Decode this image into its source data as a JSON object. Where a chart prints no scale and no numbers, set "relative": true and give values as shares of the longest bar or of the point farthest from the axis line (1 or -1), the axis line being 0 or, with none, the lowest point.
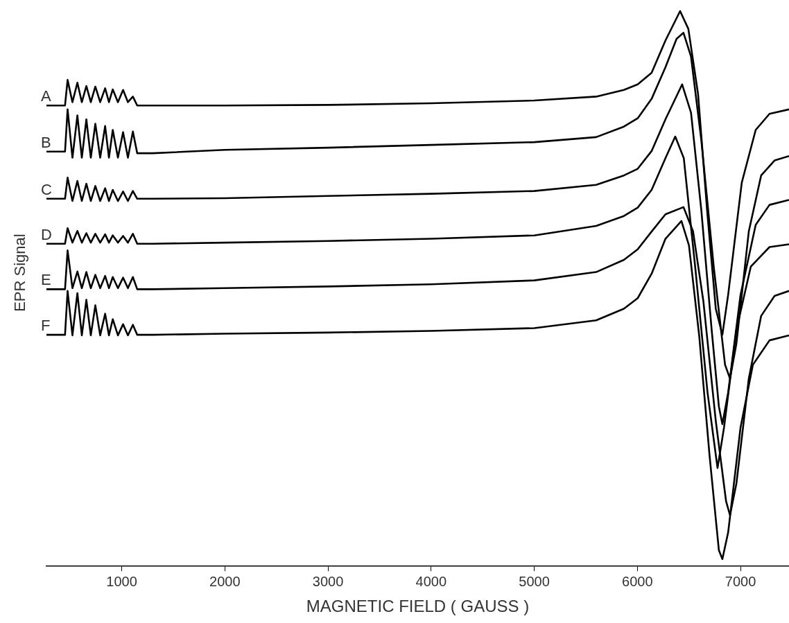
{
  "chart_data": {
    "type": "line",
    "xlabel": "MAGNETIC FIELD ( GAUSS )",
    "ylabel": "EPR Signal",
    "relative": true,
    "legend": false,
    "xlim": [
      270,
      7470
    ],
    "xticks": [
      1000,
      2000,
      3000,
      4000,
      5000,
      6000,
      7000
    ],
    "series": [
      {
        "name": "A",
        "color": "#000000",
        "x": [
          270,
          450,
          475,
          522,
          570,
          613,
          657,
          700,
          744,
          791,
          839,
          876,
          913,
          963,
          1013,
          1060,
          1108,
          1150,
          1300,
          2000,
          3000,
          4000,
          5000,
          5600,
          5869,
          6003,
          6138,
          6272,
          6414,
          6494,
          6588,
          6676,
          6760,
          6824,
          6880,
          7012,
          7147,
          7281,
          7470
        ],
        "values": [
          0.83,
          0.83,
          0.876,
          0.836,
          0.871,
          0.836,
          0.865,
          0.836,
          0.864,
          0.836,
          0.861,
          0.836,
          0.859,
          0.836,
          0.858,
          0.836,
          0.846,
          0.83,
          0.83,
          0.83,
          0.831,
          0.834,
          0.839,
          0.846,
          0.858,
          0.868,
          0.889,
          0.947,
          1.0,
          0.968,
          0.851,
          0.641,
          0.464,
          0.417,
          0.489,
          0.691,
          0.786,
          0.815,
          0.823
        ]
      },
      {
        "name": "B",
        "color": "#000000",
        "x": [
          270,
          450,
          475,
          522,
          570,
          613,
          657,
          700,
          744,
          791,
          839,
          876,
          913,
          963,
          1013,
          1060,
          1108,
          1150,
          1300,
          2000,
          3000,
          4000,
          5000,
          5600,
          5869,
          6003,
          6138,
          6272,
          6380,
          6447,
          6520,
          6620,
          6740,
          6850,
          6898,
          6960,
          7080,
          7200,
          7330,
          7470
        ],
        "values": [
          0.747,
          0.747,
          0.823,
          0.736,
          0.812,
          0.736,
          0.805,
          0.736,
          0.797,
          0.736,
          0.793,
          0.736,
          0.786,
          0.736,
          0.782,
          0.736,
          0.783,
          0.744,
          0.744,
          0.75,
          0.754,
          0.759,
          0.764,
          0.773,
          0.792,
          0.807,
          0.842,
          0.899,
          0.95,
          0.961,
          0.918,
          0.767,
          0.54,
          0.363,
          0.338,
          0.401,
          0.603,
          0.704,
          0.731,
          0.739
        ]
      },
      {
        "name": "C",
        "color": "#000000",
        "x": [
          270,
          450,
          475,
          522,
          570,
          613,
          657,
          700,
          744,
          791,
          839,
          876,
          913,
          963,
          1013,
          1060,
          1108,
          1150,
          1300,
          2000,
          3000,
          4000,
          5000,
          5600,
          5869,
          6003,
          6138,
          6272,
          6434,
          6520,
          6620,
          6720,
          6790,
          6824,
          6880,
          7000,
          7147,
          7281,
          7470
        ],
        "values": [
          0.662,
          0.662,
          0.7,
          0.658,
          0.694,
          0.658,
          0.689,
          0.658,
          0.685,
          0.658,
          0.681,
          0.658,
          0.678,
          0.658,
          0.675,
          0.658,
          0.676,
          0.662,
          0.662,
          0.663,
          0.667,
          0.671,
          0.676,
          0.687,
          0.704,
          0.716,
          0.748,
          0.805,
          0.868,
          0.817,
          0.641,
          0.426,
          0.288,
          0.256,
          0.313,
          0.489,
          0.615,
          0.651,
          0.66
        ]
      },
      {
        "name": "D",
        "color": "#000000",
        "x": [
          270,
          450,
          475,
          522,
          570,
          613,
          657,
          700,
          744,
          791,
          839,
          876,
          913,
          963,
          1013,
          1060,
          1108,
          1150,
          1300,
          2000,
          3000,
          4000,
          5000,
          5600,
          5869,
          6003,
          6138,
          6272,
          6367,
          6450,
          6560,
          6680,
          6777,
          6840,
          6960,
          7100,
          7281,
          7470
        ],
        "values": [
          0.581,
          0.581,
          0.609,
          0.583,
          0.604,
          0.583,
          0.6,
          0.583,
          0.599,
          0.583,
          0.598,
          0.583,
          0.596,
          0.583,
          0.595,
          0.583,
          0.599,
          0.581,
          0.581,
          0.583,
          0.586,
          0.59,
          0.596,
          0.613,
          0.631,
          0.646,
          0.678,
          0.735,
          0.774,
          0.735,
          0.54,
          0.313,
          0.177,
          0.25,
          0.426,
          0.54,
          0.575,
          0.58
        ]
      },
      {
        "name": "E",
        "color": "#000000",
        "x": [
          270,
          450,
          475,
          522,
          570,
          613,
          657,
          700,
          744,
          791,
          839,
          876,
          913,
          963,
          1013,
          1060,
          1108,
          1150,
          1300,
          2000,
          3000,
          4000,
          5000,
          5600,
          5869,
          6003,
          6138,
          6272,
          6447,
          6540,
          6640,
          6760,
          6860,
          6898,
          6960,
          7080,
          7200,
          7330,
          7470
        ],
        "values": [
          0.499,
          0.499,
          0.569,
          0.501,
          0.531,
          0.501,
          0.53,
          0.501,
          0.525,
          0.501,
          0.523,
          0.501,
          0.521,
          0.501,
          0.52,
          0.501,
          0.521,
          0.499,
          0.499,
          0.501,
          0.504,
          0.508,
          0.515,
          0.53,
          0.552,
          0.571,
          0.603,
          0.634,
          0.647,
          0.603,
          0.477,
          0.262,
          0.117,
          0.092,
          0.149,
          0.338,
          0.451,
          0.487,
          0.496
        ]
      },
      {
        "name": "F",
        "color": "#000000",
        "x": [
          270,
          450,
          475,
          522,
          570,
          613,
          657,
          700,
          744,
          791,
          839,
          876,
          913,
          963,
          1013,
          1060,
          1108,
          1150,
          1300,
          2000,
          3000,
          4000,
          5000,
          5600,
          5869,
          6003,
          6138,
          6272,
          6427,
          6500,
          6600,
          6700,
          6790,
          6824,
          6880,
          7000,
          7120,
          7281,
          7470
        ],
        "values": [
          0.417,
          0.417,
          0.496,
          0.416,
          0.492,
          0.416,
          0.48,
          0.416,
          0.47,
          0.416,
          0.455,
          0.416,
          0.445,
          0.416,
          0.436,
          0.416,
          0.435,
          0.417,
          0.417,
          0.419,
          0.421,
          0.424,
          0.429,
          0.443,
          0.464,
          0.483,
          0.527,
          0.59,
          0.622,
          0.578,
          0.414,
          0.199,
          0.029,
          0.013,
          0.061,
          0.25,
          0.363,
          0.407,
          0.416
        ]
      }
    ]
  }
}
